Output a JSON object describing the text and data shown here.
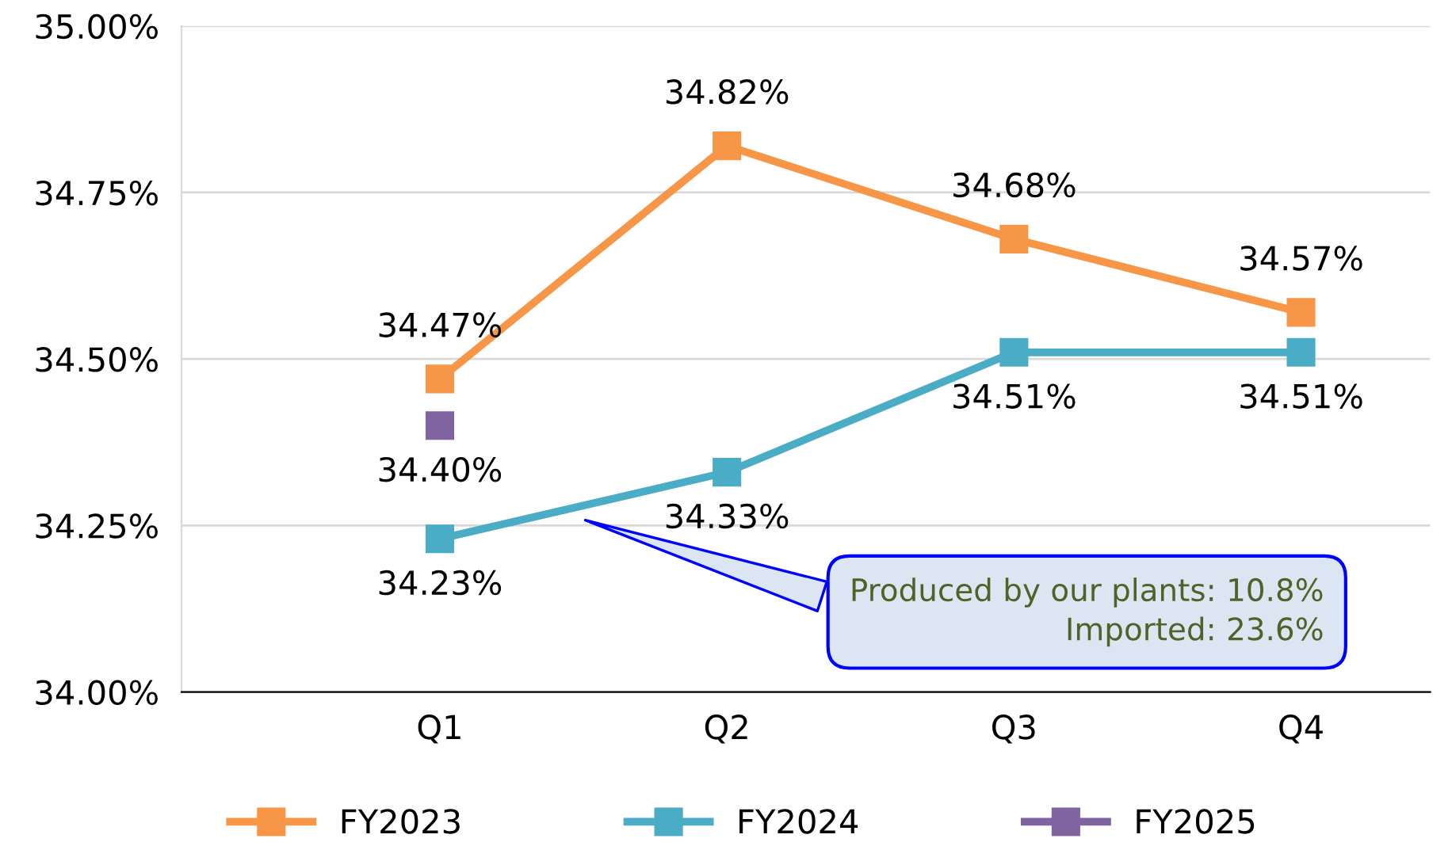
{
  "chart_data": {
    "type": "line",
    "categories": [
      "Q1",
      "Q2",
      "Q3",
      "Q4"
    ],
    "series": [
      {
        "name": "FY2023",
        "color": "#f79646",
        "values": [
          34.47,
          34.82,
          34.68,
          34.57
        ],
        "value_labels": [
          "34.47%",
          "34.82%",
          "34.68%",
          "34.57%"
        ]
      },
      {
        "name": "FY2024",
        "color": "#4bacc6",
        "values": [
          34.23,
          34.33,
          34.51,
          34.51
        ],
        "value_labels": [
          "34.23%",
          "34.33%",
          "34.51%",
          "34.51%"
        ]
      },
      {
        "name": "FY2025",
        "color": "#8064a2",
        "values": [
          34.4,
          null,
          null,
          null
        ],
        "value_labels": [
          "34.40%",
          null,
          null,
          null
        ]
      }
    ],
    "ylim": [
      34.0,
      35.0
    ],
    "yticks": [
      {
        "value": 34.0,
        "label": "34.00%"
      },
      {
        "value": 34.25,
        "label": "34.25%"
      },
      {
        "value": 34.5,
        "label": "34.50%"
      },
      {
        "value": 34.75,
        "label": "34.75%"
      },
      {
        "value": 35.0,
        "label": "35.00%"
      }
    ],
    "grid": "y",
    "legend": "bottom",
    "marker": "square",
    "line_style": "solid",
    "annotations": [
      "Produced by our plants: 10.8%\nImported: 23.6%"
    ]
  }
}
